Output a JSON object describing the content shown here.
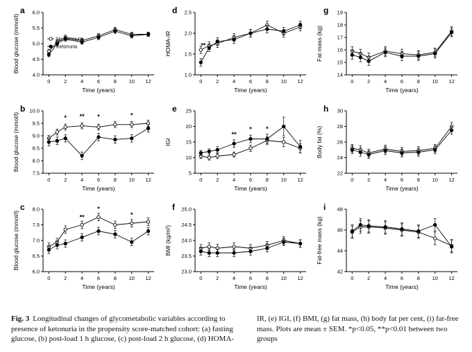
{
  "figure": {
    "caption_label": "Fig. 3",
    "caption_left": "Longitudinal changes of glycometabolic variables according to presence of ketonuria in the propensity score-matched cohort: (a) fasting glucose, (b) post-load 1 h glucose, (c) post-load 2 h glucose, (d) HOMA-",
    "caption_right": "IR, (e) IGI, (f) BMI, (g) fat mass, (h) body fat per cent, (i) fat-free mass. Plots are mean ± SEM. *p<0.05, **p<0.01 between two groups"
  },
  "legend": {
    "no_ketonuria": "No ketonuria",
    "ketonuria": "Ketonuria"
  },
  "chart_data": [
    {
      "id": "a",
      "type": "line",
      "ylabel": "Blood glucose (mmol/l)",
      "xlabel": "Time (years)",
      "ylim": [
        4.0,
        6.0
      ],
      "yticks": [
        4.0,
        4.5,
        5.0,
        5.5,
        6.0
      ],
      "ydecimals": 1,
      "x": [
        0,
        1,
        2,
        4,
        6,
        8,
        10,
        12
      ],
      "xticks": [
        0,
        2,
        4,
        6,
        8,
        10,
        12
      ],
      "legend": true,
      "series": [
        {
          "name": "No ketonuria",
          "marker": "open",
          "values": [
            4.75,
            5.05,
            5.2,
            5.1,
            5.25,
            5.45,
            5.3,
            5.3
          ],
          "err": 0.07
        },
        {
          "name": "Ketonuria",
          "marker": "filled",
          "values": [
            4.65,
            5.0,
            5.15,
            5.05,
            5.2,
            5.4,
            5.25,
            5.3
          ],
          "err": 0.07
        }
      ],
      "annotations": []
    },
    {
      "id": "d",
      "type": "line",
      "ylabel": "HOMA-IR",
      "xlabel": "Time (years)",
      "ylim": [
        1.0,
        2.5
      ],
      "yticks": [
        1.0,
        1.5,
        2.0,
        2.5
      ],
      "ydecimals": 1,
      "x": [
        0,
        1,
        2,
        4,
        6,
        8,
        10,
        12
      ],
      "xticks": [
        0,
        2,
        4,
        6,
        8,
        10,
        12
      ],
      "legend": false,
      "series": [
        {
          "name": "No ketonuria",
          "marker": "open",
          "values": [
            1.6,
            1.7,
            1.75,
            1.9,
            2.0,
            2.2,
            2.0,
            2.15
          ],
          "err": 0.09
        },
        {
          "name": "Ketonuria",
          "marker": "filled",
          "values": [
            1.3,
            1.65,
            1.8,
            1.85,
            2.0,
            2.1,
            2.05,
            2.2
          ],
          "err": 0.09
        }
      ],
      "annotations": [
        {
          "x": 0.3,
          "y": 1.66,
          "label": "**"
        }
      ]
    },
    {
      "id": "g",
      "type": "line",
      "ylabel": "Fat mass (kg)",
      "xlabel": "Time (years)",
      "ylim": [
        14,
        19
      ],
      "yticks": [
        14,
        15,
        16,
        17,
        18,
        19
      ],
      "ydecimals": 0,
      "x": [
        0,
        1,
        2,
        4,
        6,
        8,
        10,
        12
      ],
      "xticks": [
        0,
        2,
        4,
        6,
        8,
        10,
        12
      ],
      "legend": false,
      "series": [
        {
          "name": "No ketonuria",
          "marker": "open",
          "values": [
            15.9,
            15.7,
            15.4,
            15.9,
            15.7,
            15.6,
            15.8,
            17.5
          ],
          "err": 0.35
        },
        {
          "name": "Ketonuria",
          "marker": "filled",
          "values": [
            15.6,
            15.4,
            15.1,
            15.8,
            15.5,
            15.5,
            15.7,
            17.4
          ],
          "err": 0.35
        }
      ],
      "annotations": []
    },
    {
      "id": "b",
      "type": "line",
      "ylabel": "Blood glucose (mmol/l)",
      "xlabel": "Time (years)",
      "ylim": [
        7.5,
        10.0
      ],
      "yticks": [
        7.5,
        8.0,
        8.5,
        9.0,
        9.5,
        10.0
      ],
      "ydecimals": 1,
      "x": [
        0,
        1,
        2,
        4,
        6,
        8,
        10,
        12
      ],
      "xticks": [
        0,
        2,
        4,
        6,
        8,
        10,
        12
      ],
      "legend": false,
      "series": [
        {
          "name": "No ketonuria",
          "marker": "open",
          "values": [
            8.9,
            9.15,
            9.35,
            9.4,
            9.35,
            9.45,
            9.45,
            9.5
          ],
          "err": 0.12
        },
        {
          "name": "Ketonuria",
          "marker": "filled",
          "values": [
            8.75,
            8.8,
            8.9,
            8.2,
            8.95,
            8.85,
            8.9,
            9.3
          ],
          "err": 0.15
        }
      ],
      "annotations": [
        {
          "x": 2,
          "y": 9.64,
          "label": "*"
        },
        {
          "x": 4,
          "y": 9.7,
          "label": "**"
        },
        {
          "x": 6,
          "y": 9.68,
          "label": "*"
        },
        {
          "x": 10,
          "y": 9.74,
          "label": "*"
        }
      ]
    },
    {
      "id": "e",
      "type": "line",
      "ylabel": "IGI",
      "xlabel": "Time (years)",
      "ylim": [
        5,
        25
      ],
      "yticks": [
        5,
        10,
        15,
        20,
        25
      ],
      "ydecimals": 0,
      "x": [
        0,
        1,
        2,
        4,
        6,
        8,
        10,
        12
      ],
      "xticks": [
        0,
        2,
        4,
        6,
        8,
        10,
        12
      ],
      "legend": false,
      "series": [
        {
          "name": "No ketonuria",
          "marker": "open",
          "values": [
            10.5,
            10.0,
            10.5,
            11.0,
            13.0,
            15.5,
            15.0,
            13.0
          ],
          "err": [
            0.8,
            0.8,
            0.8,
            0.8,
            1.0,
            1.2,
            1.5,
            1.5
          ]
        },
        {
          "name": "Ketonuria",
          "marker": "filled",
          "values": [
            11.5,
            12.0,
            12.5,
            14.5,
            16.0,
            16.0,
            20.0,
            13.5
          ],
          "err": [
            0.8,
            0.8,
            1.0,
            1.2,
            1.2,
            1.5,
            3.0,
            2.0
          ]
        }
      ],
      "annotations": [
        {
          "x": 4,
          "y": 16.8,
          "label": "**"
        },
        {
          "x": 6,
          "y": 18.4,
          "label": "*"
        },
        {
          "x": 8,
          "y": 18.6,
          "label": "*"
        }
      ]
    },
    {
      "id": "h",
      "type": "line",
      "ylabel": "Body fat (%)",
      "xlabel": "Time (years)",
      "ylim": [
        22,
        30
      ],
      "yticks": [
        22,
        24,
        26,
        28,
        30
      ],
      "ydecimals": 0,
      "x": [
        0,
        1,
        2,
        4,
        6,
        8,
        10,
        12
      ],
      "xticks": [
        0,
        2,
        4,
        6,
        8,
        10,
        12
      ],
      "legend": false,
      "series": [
        {
          "name": "No ketonuria",
          "marker": "open",
          "values": [
            25.2,
            25.0,
            24.6,
            25.1,
            24.8,
            24.9,
            25.2,
            28.0
          ],
          "err": 0.5
        },
        {
          "name": "Ketonuria",
          "marker": "filled",
          "values": [
            25.0,
            24.7,
            24.4,
            24.9,
            24.6,
            24.7,
            25.0,
            27.5
          ],
          "err": 0.5
        }
      ],
      "annotations": []
    },
    {
      "id": "c",
      "type": "line",
      "ylabel": "Blood glucose (mmol/l)",
      "xlabel": "Time (years)",
      "ylim": [
        6.0,
        8.0
      ],
      "yticks": [
        6.0,
        6.5,
        7.0,
        7.5,
        8.0
      ],
      "ydecimals": 1,
      "x": [
        0,
        1,
        2,
        4,
        6,
        8,
        10,
        12
      ],
      "xticks": [
        0,
        2,
        4,
        6,
        8,
        10,
        12
      ],
      "legend": false,
      "series": [
        {
          "name": "No ketonuria",
          "marker": "open",
          "values": [
            6.8,
            6.95,
            7.35,
            7.5,
            7.75,
            7.5,
            7.55,
            7.6
          ],
          "err": 0.12
        },
        {
          "name": "Ketonuria",
          "marker": "filled",
          "values": [
            6.7,
            6.85,
            6.9,
            7.1,
            7.3,
            7.2,
            6.95,
            7.3
          ],
          "err": 0.12
        }
      ],
      "annotations": [
        {
          "x": 4,
          "y": 7.68,
          "label": "**"
        },
        {
          "x": 6,
          "y": 7.94,
          "label": "*"
        },
        {
          "x": 10,
          "y": 7.76,
          "label": "*"
        }
      ]
    },
    {
      "id": "f",
      "type": "line",
      "ylabel": "BMI (kg/m²)",
      "xlabel": "Time (years)",
      "ylim": [
        23.0,
        25.0
      ],
      "yticks": [
        23.0,
        23.5,
        24.0,
        24.5,
        25.0
      ],
      "ydecimals": 1,
      "x": [
        0,
        1,
        2,
        4,
        6,
        8,
        10,
        12
      ],
      "xticks": [
        0,
        2,
        4,
        6,
        8,
        10,
        12
      ],
      "legend": false,
      "series": [
        {
          "name": "No ketonuria",
          "marker": "open",
          "values": [
            23.75,
            23.8,
            23.75,
            23.8,
            23.75,
            23.85,
            24.0,
            23.9
          ],
          "err": 0.12
        },
        {
          "name": "Ketonuria",
          "marker": "filled",
          "values": [
            23.65,
            23.6,
            23.6,
            23.6,
            23.65,
            23.75,
            23.95,
            23.9
          ],
          "err": 0.12
        }
      ],
      "annotations": []
    },
    {
      "id": "i",
      "type": "line",
      "ylabel": "Fat-free mass (kg)",
      "xlabel": "Time (years)",
      "ylim": [
        42,
        48
      ],
      "yticks": [
        42,
        44,
        46,
        48
      ],
      "ydecimals": 0,
      "x": [
        0,
        1,
        2,
        4,
        6,
        8,
        10,
        12
      ],
      "xticks": [
        0,
        2,
        4,
        6,
        8,
        10,
        12
      ],
      "legend": false,
      "series": [
        {
          "name": "No ketonuria",
          "marker": "open",
          "values": [
            45.8,
            46.3,
            46.3,
            46.2,
            46.0,
            45.8,
            45.2,
            44.5
          ],
          "err": 0.6
        },
        {
          "name": "Ketonuria",
          "marker": "filled",
          "values": [
            45.9,
            46.5,
            46.4,
            46.3,
            46.1,
            45.9,
            46.5,
            44.4
          ],
          "err": 0.6
        }
      ],
      "annotations": []
    }
  ]
}
